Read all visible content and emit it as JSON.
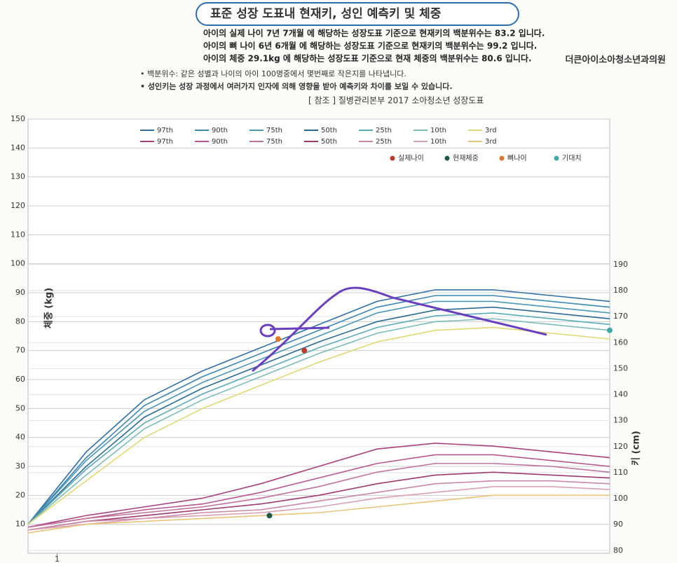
{
  "header": {
    "clinic": "더큰아이소아청소년과의원",
    "section_title": "표준 성장 도표내 현재키, 성인 예측키 및 체중",
    "lines": [
      "아이의 실제 나이 7년 7개월 에 해당하는 성장도표 기준으로 현재키의 백분위수는 83.2 입니다.",
      "아이의 뼈 나이 6년 6개월 에 해당하는 성장도표 기준으로 현재키의 백분위수는 99.2 입니다.",
      "아이의 체중 29.1kg 에 해당하는 성장도표 기준으로 현재 체중의 백분위수는 80.6 입니다."
    ],
    "notes": [
      "• 백분위수: 같은 성별과 나이의 아이 100명중에서 몇번째로 작은지를 나타냅니다.",
      "• 성인키는 성장 과정에서 여러가지 인자에 의해 영향을 받아 예측키와 차이를 보일 수 있습니다."
    ],
    "reference": "[ 참조 ] 질병관리본부 2017 소아청소년 성장도표"
  },
  "chart_data": {
    "type": "line",
    "y_label": "체중 (kg)",
    "y2_label": "키 (cm)",
    "x": [
      0,
      2,
      4,
      6,
      8,
      10,
      12,
      14,
      16,
      18,
      20
    ],
    "xlim": [
      0,
      20
    ],
    "xticks": [
      1
    ],
    "ylim": [
      0,
      150
    ],
    "yticks": [
      10,
      20,
      30,
      40,
      50,
      60,
      70,
      80,
      90,
      100,
      110,
      120,
      130,
      140,
      150
    ],
    "y2lim": [
      79,
      246
    ],
    "y2ticks": [
      80,
      90,
      100,
      110,
      120,
      130,
      140,
      150,
      160,
      170,
      180,
      190
    ],
    "grid": true,
    "series": [
      {
        "name": "97th",
        "color": "#2f6fa6",
        "values": [
          10,
          35,
          53,
          63,
          71,
          79,
          87,
          91,
          91,
          89,
          87
        ]
      },
      {
        "name": "90th",
        "color": "#3c86b4",
        "values": [
          10,
          33,
          51,
          61,
          69,
          77,
          85,
          89,
          89,
          87,
          85
        ]
      },
      {
        "name": "75th",
        "color": "#4a98b8",
        "values": [
          10,
          32,
          49,
          59,
          67,
          75,
          83,
          87,
          87,
          85,
          83
        ]
      },
      {
        "name": "50th",
        "color": "#2c6b96",
        "values": [
          10,
          30,
          47,
          57,
          65,
          73,
          80,
          84,
          85,
          83,
          81
        ]
      },
      {
        "name": "25th",
        "color": "#5aaab8",
        "values": [
          10,
          29,
          45,
          55,
          63,
          71,
          78,
          82,
          83,
          81,
          79
        ]
      },
      {
        "name": "10th",
        "color": "#7cbcb8",
        "values": [
          10,
          27,
          43,
          53,
          61,
          69,
          76,
          80,
          81,
          79,
          77
        ]
      },
      {
        "name": "3rd",
        "color": "#e2d774",
        "values": [
          10,
          25,
          40,
          50,
          58,
          66,
          73,
          77,
          78,
          76,
          74
        ]
      },
      {
        "name": "97th",
        "color": "#a8407e",
        "values": [
          9,
          13,
          16,
          19,
          24,
          30,
          36,
          38,
          37,
          35,
          33
        ]
      },
      {
        "name": "90th",
        "color": "#b85590",
        "values": [
          9,
          12,
          15,
          17,
          21,
          26,
          31,
          34,
          34,
          32,
          30
        ]
      },
      {
        "name": "75th",
        "color": "#c0709c",
        "values": [
          9,
          12,
          14,
          16,
          19,
          23,
          28,
          31,
          31,
          30,
          28
        ]
      },
      {
        "name": "50th",
        "color": "#9c3a70",
        "values": [
          8,
          11,
          13,
          15,
          17,
          20,
          24,
          27,
          28,
          27,
          26
        ]
      },
      {
        "name": "25th",
        "color": "#c888a8",
        "values": [
          8,
          11,
          12,
          14,
          15,
          18,
          21,
          24,
          25,
          25,
          24
        ]
      },
      {
        "name": "10th",
        "color": "#d8a0b4",
        "values": [
          8,
          10,
          12,
          13,
          14,
          16,
          19,
          21,
          23,
          23,
          22
        ]
      },
      {
        "name": "3rd",
        "color": "#e8c47a",
        "values": [
          7,
          10,
          11,
          12,
          13,
          14,
          16,
          18,
          20,
          20,
          20
        ]
      }
    ],
    "points": [
      {
        "name": "실제나이",
        "color": "#c0392b",
        "x": 9.5,
        "y": 70
      },
      {
        "name": "현재체중",
        "color": "#1e5b46",
        "x": 8.3,
        "y": 13
      },
      {
        "name": "뼈나이",
        "color": "#e0782a",
        "x": 8.6,
        "y": 74
      },
      {
        "name": "기대치",
        "color": "#3fa8a8",
        "x": 20,
        "y": 77
      }
    ]
  }
}
